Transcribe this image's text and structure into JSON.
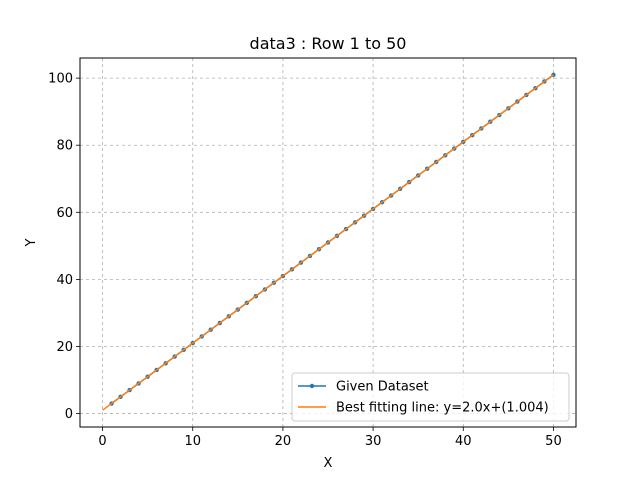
{
  "chart_data": {
    "type": "line",
    "title": "data3 : Row 1 to 50",
    "xlabel": "X",
    "ylabel": "Y",
    "xlim": [
      -2.5,
      52.5
    ],
    "ylim": [
      -4,
      106
    ],
    "xticks": [
      0,
      10,
      20,
      30,
      40,
      50
    ],
    "yticks": [
      0,
      20,
      40,
      60,
      80,
      100
    ],
    "grid": true,
    "legend_position": "lower-right",
    "series": [
      {
        "name": "Given Dataset",
        "kind": "line-with-markers",
        "color": "#1f77b4",
        "x": [
          1,
          2,
          3,
          4,
          5,
          6,
          7,
          8,
          9,
          10,
          11,
          12,
          13,
          14,
          15,
          16,
          17,
          18,
          19,
          20,
          21,
          22,
          23,
          24,
          25,
          26,
          27,
          28,
          29,
          30,
          31,
          32,
          33,
          34,
          35,
          36,
          37,
          38,
          39,
          40,
          41,
          42,
          43,
          44,
          45,
          46,
          47,
          48,
          49,
          50
        ],
        "y": [
          3,
          5,
          7,
          9,
          11,
          13,
          15,
          17,
          19,
          21,
          23,
          25,
          27,
          29,
          31,
          33,
          35,
          37,
          39,
          41,
          43,
          45,
          47,
          49,
          51,
          53,
          55,
          57,
          59,
          61,
          63,
          65,
          67,
          69,
          71,
          73,
          75,
          77,
          79,
          81,
          83,
          85,
          87,
          89,
          91,
          93,
          95,
          97,
          99,
          101
        ]
      },
      {
        "name": "Best fitting line: y=2.0x+(1.004)",
        "kind": "line",
        "color": "#ff7f0e",
        "x": [
          0,
          50
        ],
        "y": [
          1.004,
          101.004
        ]
      }
    ]
  }
}
